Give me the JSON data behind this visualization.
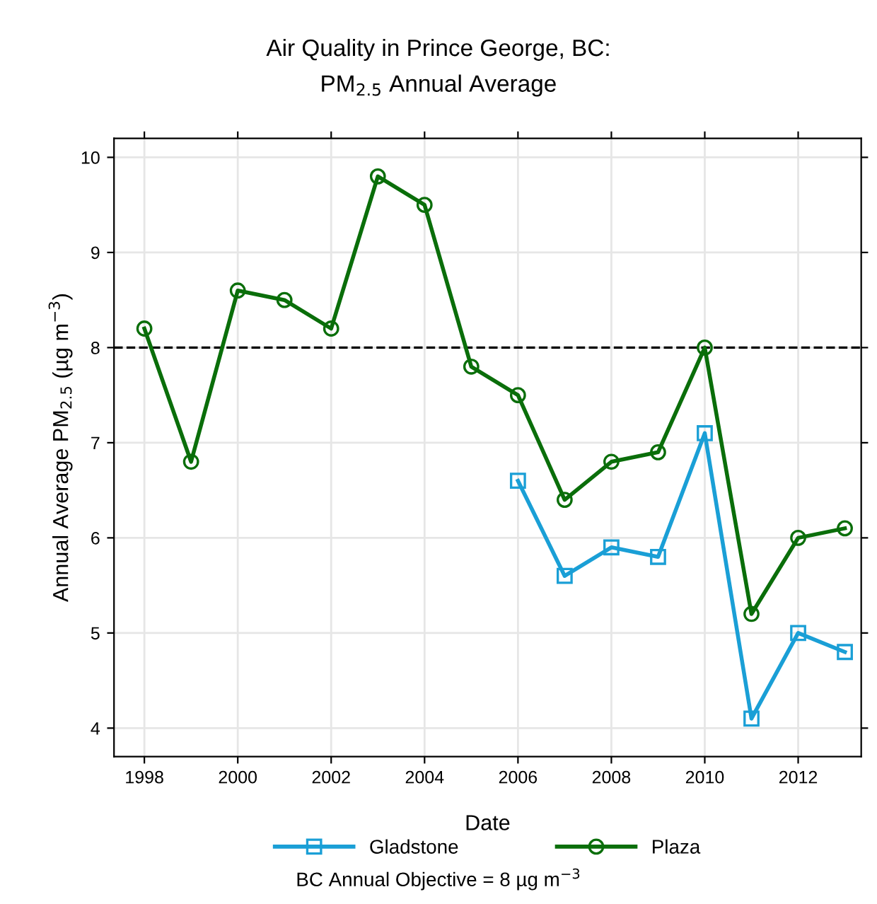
{
  "chart_data": {
    "type": "line",
    "title": "Air Quality in Prince George, BC:\nPM$_{2.5}$ Annual Average",
    "xlabel": "Date",
    "ylabel": "Annual Average PM$_{2.5}$ (µg m$^{−3}$)",
    "annotations": [
      "BC Annual Objective = 8 µg m$^{−3}$"
    ],
    "series": [
      {
        "name": "Gladstone",
        "color": "#1a9fd6",
        "marker": "square",
        "x": [
          2006,
          2007,
          2008,
          2009,
          2010,
          2011,
          2012,
          2013
        ],
        "values": [
          6.6,
          5.6,
          5.9,
          5.8,
          7.1,
          4.1,
          5.0,
          4.8
        ]
      },
      {
        "name": "Plaza",
        "color": "#0a6e0a",
        "marker": "circle",
        "x": [
          1998,
          1999,
          2000,
          2001,
          2002,
          2003,
          2004,
          2005,
          2006,
          2007,
          2008,
          2009,
          2010,
          2011,
          2012,
          2013
        ],
        "values": [
          8.2,
          6.8,
          8.6,
          8.5,
          8.2,
          9.8,
          9.5,
          7.8,
          7.5,
          6.4,
          6.8,
          6.9,
          8.0,
          5.2,
          6.0,
          6.1
        ]
      }
    ],
    "xlim": [
      1997.35,
      2013.35
    ],
    "xticks": [
      1998,
      2000,
      2002,
      2004,
      2006,
      2008,
      2010,
      2012
    ],
    "ylim": [
      3.7,
      10.2
    ],
    "yticks": [
      4,
      5,
      6,
      7,
      8,
      9,
      10
    ],
    "ref_lines": [
      {
        "axis": "y",
        "value": 8,
        "color": "#000000",
        "line_style": "dashed"
      }
    ],
    "grid": true,
    "legend": "bottom",
    "line_style": "solid"
  }
}
